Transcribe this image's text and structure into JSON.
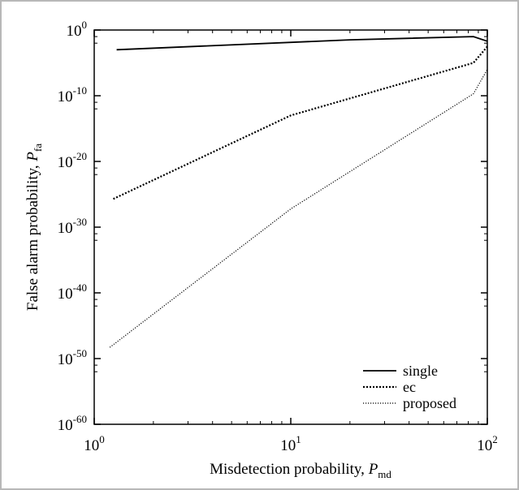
{
  "chart_data": {
    "type": "line",
    "title": "",
    "xlabel": {
      "text": "Misdetection probability, ",
      "var": "P",
      "sub": "md"
    },
    "ylabel": {
      "text": "False alarm probability, ",
      "var": "P",
      "sub": "fa"
    },
    "x_scale": "log",
    "y_scale": "log",
    "xlim": [
      1,
      100
    ],
    "ylim": [
      1e-60,
      1
    ],
    "x_ticks": [
      {
        "base": "10",
        "exp": "0",
        "value": 1
      },
      {
        "base": "10",
        "exp": "1",
        "value": 10
      },
      {
        "base": "10",
        "exp": "2",
        "value": 100
      }
    ],
    "y_ticks": [
      {
        "base": "10",
        "exp": "0",
        "value": 0
      },
      {
        "base": "10",
        "exp": "-10",
        "value": -10
      },
      {
        "base": "10",
        "exp": "-20",
        "value": -20
      },
      {
        "base": "10",
        "exp": "-30",
        "value": -30
      },
      {
        "base": "10",
        "exp": "-40",
        "value": -40
      },
      {
        "base": "10",
        "exp": "-50",
        "value": -50
      },
      {
        "base": "10",
        "exp": "-60",
        "value": -60
      }
    ],
    "grid": false,
    "legend_position": "bottom-right",
    "series": [
      {
        "name": "single",
        "style": "solid",
        "color": "#000000",
        "points": [
          [
            1.3,
            0.001
          ],
          [
            20,
            0.032
          ],
          [
            85,
            0.1
          ],
          [
            100,
            0.02
          ]
        ]
      },
      {
        "name": "ec",
        "style": "dotted",
        "color": "#000000",
        "points": [
          [
            1.25,
            2e-26
          ],
          [
            10,
            1e-13
          ],
          [
            85,
            1e-05
          ],
          [
            100,
            0.003
          ]
        ]
      },
      {
        "name": "proposed",
        "style": "dashed",
        "color": "#000000",
        "points": [
          [
            1.2,
            5e-49
          ],
          [
            10,
            6e-28
          ],
          [
            85,
            2e-10
          ],
          [
            100,
            1e-06
          ]
        ]
      }
    ]
  }
}
